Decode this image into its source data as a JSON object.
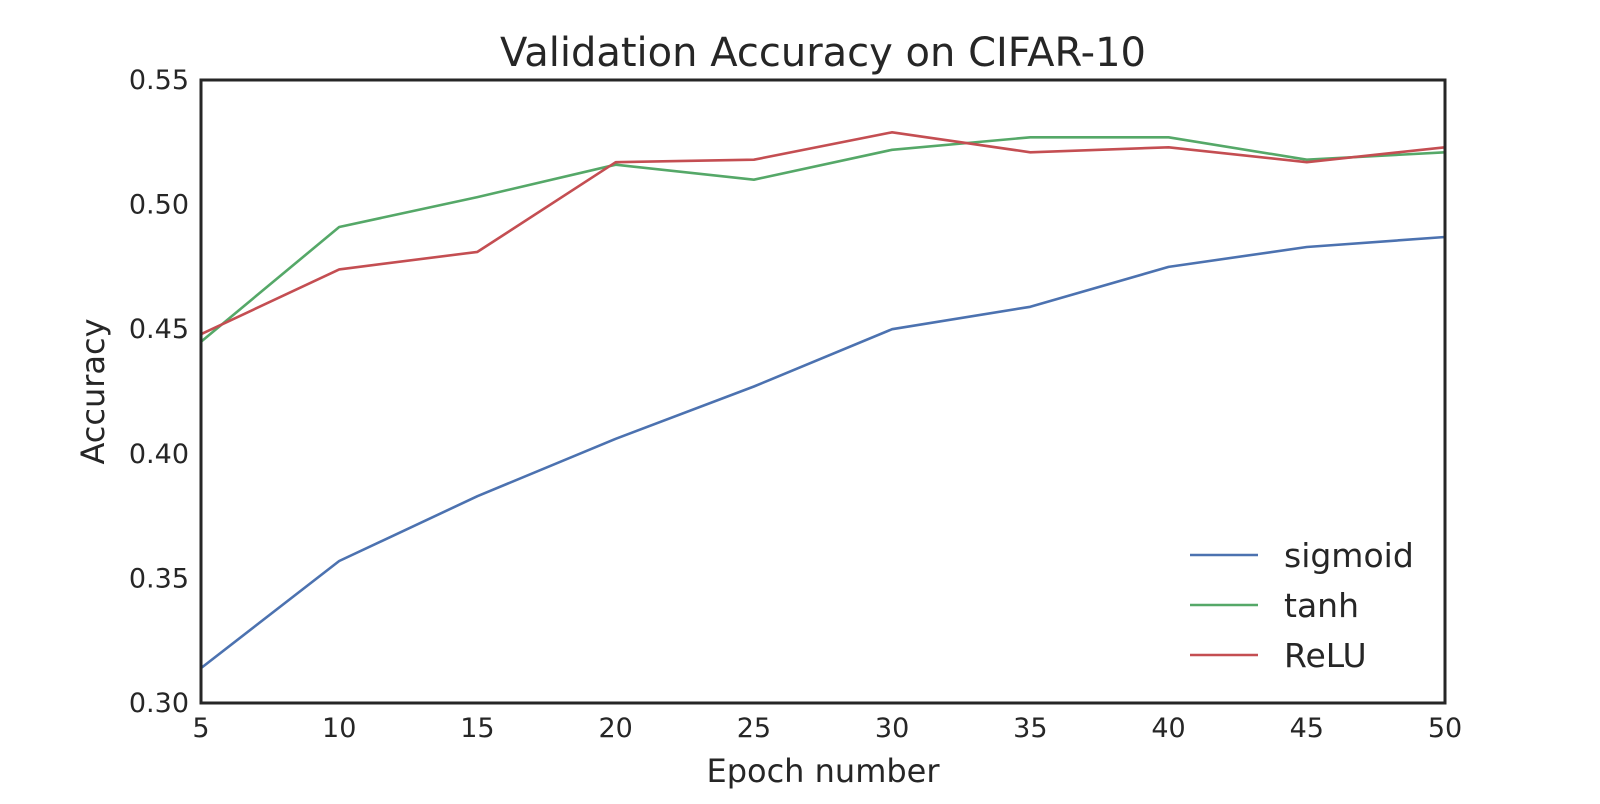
{
  "chart_data": {
    "type": "line",
    "title": "Validation Accuracy on CIFAR-10",
    "xlabel": "Epoch number",
    "ylabel": "Accuracy",
    "xlim": [
      5,
      50
    ],
    "ylim": [
      0.3,
      0.55
    ],
    "x": [
      5,
      10,
      15,
      20,
      25,
      30,
      35,
      40,
      45,
      50
    ],
    "x_ticks": [
      "5",
      "10",
      "15",
      "20",
      "25",
      "30",
      "35",
      "40",
      "45",
      "50"
    ],
    "y_ticks": [
      {
        "value": 0.3,
        "label": "0.30"
      },
      {
        "value": 0.35,
        "label": "0.35"
      },
      {
        "value": 0.4,
        "label": "0.40"
      },
      {
        "value": 0.45,
        "label": "0.45"
      },
      {
        "value": 0.5,
        "label": "0.50"
      },
      {
        "value": 0.55,
        "label": "0.55"
      }
    ],
    "grid": false,
    "legend_position": "bottom-right",
    "series": [
      {
        "name": "sigmoid",
        "color": "#4C72B0",
        "values": [
          0.314,
          0.357,
          0.383,
          0.406,
          0.427,
          0.45,
          0.459,
          0.475,
          0.483,
          0.487
        ]
      },
      {
        "name": "tanh",
        "color": "#55A868",
        "values": [
          0.445,
          0.491,
          0.503,
          0.516,
          0.51,
          0.522,
          0.527,
          0.527,
          0.518,
          0.521
        ]
      },
      {
        "name": "ReLU",
        "color": "#C44E52",
        "values": [
          0.448,
          0.474,
          0.481,
          0.517,
          0.518,
          0.529,
          0.521,
          0.523,
          0.517,
          0.523
        ]
      }
    ]
  }
}
